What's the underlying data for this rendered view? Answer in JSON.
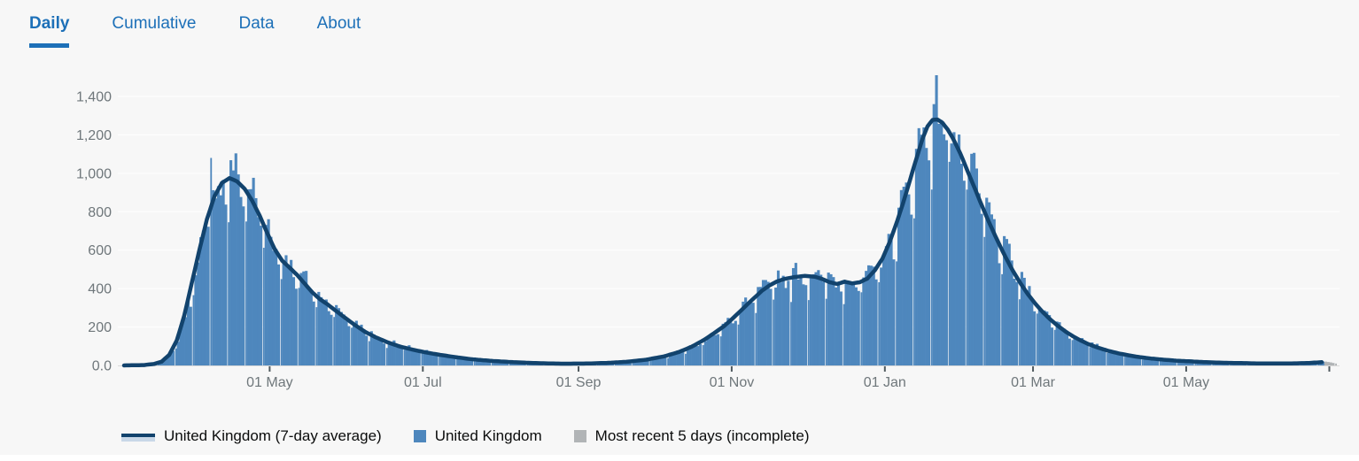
{
  "tabs": {
    "items": [
      {
        "label": "Daily",
        "active": true
      },
      {
        "label": "Cumulative",
        "active": false
      },
      {
        "label": "Data",
        "active": false
      },
      {
        "label": "About",
        "active": false
      }
    ]
  },
  "chart_data": {
    "type": "bar",
    "subtype": "daily bars with 7-day average line",
    "y_axis": {
      "max": 1400,
      "tick_step": 200,
      "tick_labels": [
        "0.0",
        "200",
        "400",
        "600",
        "800",
        "1,000",
        "1,200",
        "1,400"
      ],
      "grid": true
    },
    "x_axis": {
      "total_days": 483,
      "ticks": [
        {
          "label": "01 May",
          "day": 58
        },
        {
          "label": "01 Jul",
          "day": 119
        },
        {
          "label": "01 Sep",
          "day": 181
        },
        {
          "label": "01 Nov",
          "day": 242
        },
        {
          "label": "01 Jan",
          "day": 303
        },
        {
          "label": "01 Mar",
          "day": 362
        },
        {
          "label": "01 May",
          "day": 423
        }
      ],
      "end_tick_day": 480
    },
    "series": [
      {
        "name": "United Kingdom (7-day average)",
        "type": "line",
        "color": "#12436d",
        "stroke_width": 4.5,
        "end_day": 477,
        "keypoints": [
          [
            0,
            0
          ],
          [
            8,
            2
          ],
          [
            12,
            8
          ],
          [
            15,
            20
          ],
          [
            18,
            55
          ],
          [
            21,
            130
          ],
          [
            24,
            260
          ],
          [
            27,
            430
          ],
          [
            30,
            600
          ],
          [
            33,
            760
          ],
          [
            36,
            880
          ],
          [
            39,
            950
          ],
          [
            42,
            975
          ],
          [
            45,
            958
          ],
          [
            48,
            920
          ],
          [
            51,
            858
          ],
          [
            54,
            780
          ],
          [
            57,
            690
          ],
          [
            60,
            605
          ],
          [
            63,
            545
          ],
          [
            66,
            508
          ],
          [
            69,
            470
          ],
          [
            72,
            425
          ],
          [
            75,
            380
          ],
          [
            78,
            345
          ],
          [
            81,
            318
          ],
          [
            84,
            288
          ],
          [
            88,
            248
          ],
          [
            92,
            210
          ],
          [
            96,
            175
          ],
          [
            100,
            148
          ],
          [
            105,
            120
          ],
          [
            110,
            98
          ],
          [
            115,
            82
          ],
          [
            120,
            68
          ],
          [
            125,
            57
          ],
          [
            131,
            45
          ],
          [
            138,
            33
          ],
          [
            146,
            24
          ],
          [
            155,
            17
          ],
          [
            165,
            12
          ],
          [
            175,
            9
          ],
          [
            184,
            10
          ],
          [
            192,
            13
          ],
          [
            200,
            19
          ],
          [
            208,
            30
          ],
          [
            215,
            47
          ],
          [
            221,
            70
          ],
          [
            226,
            97
          ],
          [
            231,
            133
          ],
          [
            235,
            168
          ],
          [
            239,
            205
          ],
          [
            242,
            240
          ],
          [
            245,
            277
          ],
          [
            248,
            315
          ],
          [
            251,
            352
          ],
          [
            254,
            388
          ],
          [
            257,
            416
          ],
          [
            260,
            437
          ],
          [
            263,
            450
          ],
          [
            267,
            460
          ],
          [
            271,
            466
          ],
          [
            275,
            462
          ],
          [
            278,
            450
          ],
          [
            281,
            433
          ],
          [
            284,
            424
          ],
          [
            287,
            436
          ],
          [
            290,
            427
          ],
          [
            293,
            433
          ],
          [
            296,
            452
          ],
          [
            299,
            495
          ],
          [
            302,
            555
          ],
          [
            305,
            645
          ],
          [
            308,
            755
          ],
          [
            310,
            835
          ],
          [
            312,
            920
          ],
          [
            314,
            1010
          ],
          [
            316,
            1095
          ],
          [
            318,
            1180
          ],
          [
            320,
            1245
          ],
          [
            322,
            1278
          ],
          [
            324,
            1280
          ],
          [
            326,
            1262
          ],
          [
            328,
            1228
          ],
          [
            330,
            1185
          ],
          [
            333,
            1105
          ],
          [
            336,
            1010
          ],
          [
            339,
            915
          ],
          [
            342,
            820
          ],
          [
            345,
            730
          ],
          [
            348,
            645
          ],
          [
            351,
            565
          ],
          [
            354,
            492
          ],
          [
            357,
            428
          ],
          [
            360,
            370
          ],
          [
            363,
            320
          ],
          [
            366,
            276
          ],
          [
            369,
            238
          ],
          [
            372,
            205
          ],
          [
            375,
            176
          ],
          [
            378,
            151
          ],
          [
            381,
            130
          ],
          [
            384,
            111
          ],
          [
            388,
            92
          ],
          [
            392,
            76
          ],
          [
            396,
            63
          ],
          [
            400,
            53
          ],
          [
            404,
            44
          ],
          [
            409,
            36
          ],
          [
            414,
            30
          ],
          [
            419,
            25
          ],
          [
            425,
            21
          ],
          [
            431,
            17
          ],
          [
            438,
            14
          ],
          [
            446,
            12
          ],
          [
            454,
            10
          ],
          [
            461,
            10
          ],
          [
            467,
            11
          ],
          [
            472,
            13
          ],
          [
            477,
            17
          ]
        ]
      },
      {
        "name": "United Kingdom",
        "type": "bar",
        "color": "#4e87bd",
        "weekday_factors": [
          1.02,
          1.07,
          1.05,
          1.01,
          0.97,
          0.88,
          0.79
        ],
        "noise_seed": 7,
        "noise_amp": 0.2,
        "noise_bias": 0.42,
        "spikes": [
          [
            34,
            1080
          ],
          [
            322,
            1360
          ]
        ]
      },
      {
        "name": "Most recent 5 days (incomplete)",
        "type": "bar",
        "color": "#b1b4b6",
        "start_day": 478,
        "values": [
          20,
          18,
          16,
          13,
          10
        ]
      }
    ]
  },
  "legend": {
    "items": [
      {
        "label": "United Kingdom (7-day average)",
        "swatch": "line",
        "color": "#12436d",
        "band_color": "#c9d8e8"
      },
      {
        "label": "United Kingdom",
        "swatch": "square",
        "color": "#4e87bd"
      },
      {
        "label": "Most recent 5 days (incomplete)",
        "swatch": "square",
        "color": "#b1b4b6"
      }
    ]
  },
  "colors": {
    "background": "#f7f7f7",
    "gridline": "#ffffff",
    "axis_line": "#d9d9d9",
    "tick": "#505a5f",
    "axis_label": "#6f777b",
    "tab": "#1d70b8",
    "legend_text": "#0b0c0c"
  }
}
